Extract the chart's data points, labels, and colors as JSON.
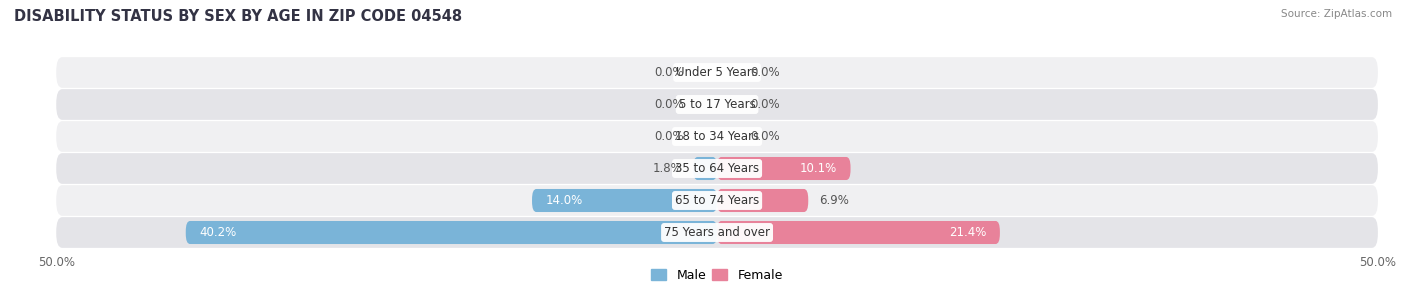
{
  "title": "DISABILITY STATUS BY SEX BY AGE IN ZIP CODE 04548",
  "source": "Source: ZipAtlas.com",
  "categories": [
    "Under 5 Years",
    "5 to 17 Years",
    "18 to 34 Years",
    "35 to 64 Years",
    "65 to 74 Years",
    "75 Years and over"
  ],
  "male_values": [
    0.0,
    0.0,
    0.0,
    1.8,
    14.0,
    40.2
  ],
  "female_values": [
    0.0,
    0.0,
    0.0,
    10.1,
    6.9,
    21.4
  ],
  "male_color": "#7ab4d8",
  "female_color": "#e8829a",
  "row_color_even": "#f0f0f2",
  "row_color_odd": "#e4e4e8",
  "max_val": 50.0,
  "title_fontsize": 10.5,
  "label_fontsize": 8.5,
  "value_fontsize": 8.5,
  "axis_label_fontsize": 8.5,
  "legend_fontsize": 9
}
